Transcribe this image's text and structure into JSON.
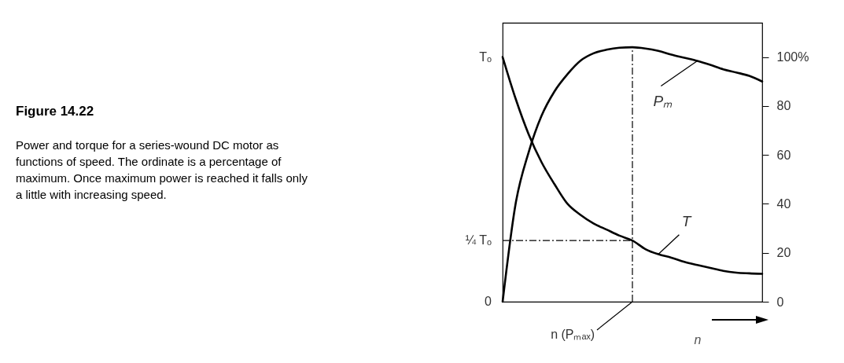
{
  "chart_data": {
    "type": "line",
    "title": "Figure 14.22",
    "subtitle": "Power and torque for a series-wound DC motor as functions of speed. The ordinate is a percentage of maximum. Once maximum power is reached it falls only a little with increasing speed.",
    "xlabel": "n",
    "categories": [
      null,
      null,
      null,
      null,
      null,
      null,
      null,
      null,
      null,
      null,
      null,
      null,
      null,
      null,
      null,
      null,
      null,
      null,
      null,
      null,
      null
    ],
    "ylim": [
      0,
      114
    ],
    "yticks": [
      0,
      20,
      40,
      60,
      80,
      {
        "value": 100,
        "label": "100%"
      }
    ],
    "marker": "none",
    "line_style": "solid",
    "grid": false,
    "series": [
      {
        "name": "T",
        "color": "#000000",
        "values": [
          100,
          83,
          68.5,
          57,
          48,
          40,
          35.5,
          32,
          29.5,
          27,
          25,
          21.5,
          19.4,
          18,
          16.3,
          15,
          13.8,
          12.6,
          11.9,
          11.6,
          11.4
        ]
      },
      {
        "name": "Pₘ",
        "color": "#000000",
        "values": [
          0,
          40,
          61,
          76,
          86,
          93,
          98.5,
          101.5,
          103,
          103.8,
          104,
          103.5,
          102.5,
          101,
          99.7,
          98.4,
          96.8,
          95,
          93.7,
          92.3,
          90
        ]
      }
    ],
    "annotations": [
      "Tₒ",
      "0",
      "n (Pₘₐₓ)"
    ],
    "ref_lines": [
      {
        "axis": "y",
        "value": 25,
        "label": "¼ Tₒ",
        "line_style": "dashed",
        "color": "#000000"
      }
    ]
  }
}
